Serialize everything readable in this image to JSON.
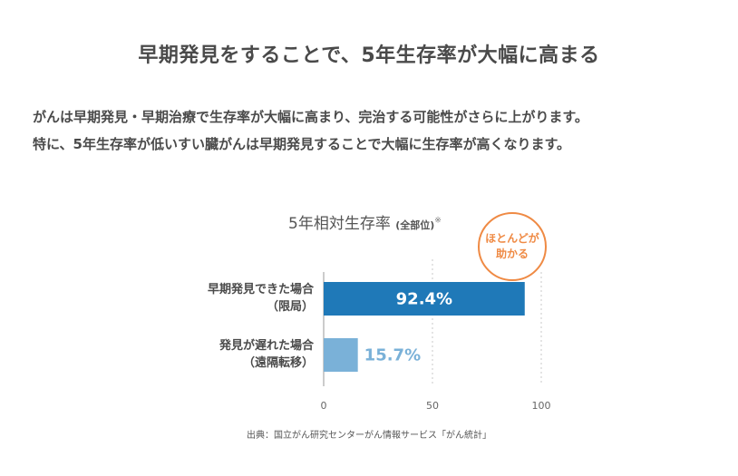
{
  "heading": "早期発見をすることで、5年生存率が大幅に高まる",
  "body": {
    "line1": "がんは早期発見・早期治療で生存率が大幅に高まり、完治する可能性がさらに上がります。",
    "line2": "特に、5年生存率が低いすい臓がんは早期発見することで大幅に生存率が高くなります。"
  },
  "badge": {
    "line1": "ほとんどが",
    "line2": "助かる"
  },
  "source": "出典：国立がん研究センターがん情報サービス「がん統計」",
  "colors": {
    "bar_early": "#1f79b8",
    "bar_late": "#7ab1d8",
    "badge": "#ef8a44",
    "text": "#4a4a4a"
  },
  "chart_data": {
    "type": "bar",
    "orientation": "horizontal",
    "title": "5年相対生存率",
    "title_sub": "(全部位)",
    "title_note": "※",
    "categories": [
      {
        "line1": "早期発見できた場合",
        "line2": "（限局）"
      },
      {
        "line1": "発見が遅れた場合",
        "line2": "（遠隔転移）"
      }
    ],
    "values": [
      92.4,
      15.7
    ],
    "value_labels": [
      "92.4%",
      "15.7%"
    ],
    "xlim": [
      0,
      100
    ],
    "xticks": [
      "0",
      "50",
      "100"
    ],
    "grid": true
  }
}
